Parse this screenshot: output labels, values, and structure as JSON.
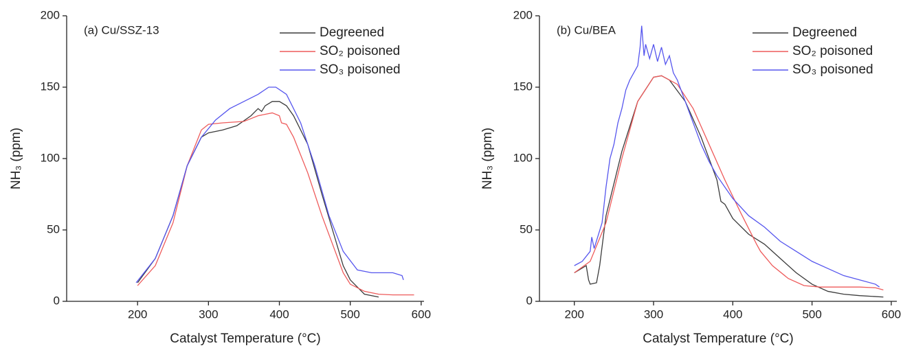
{
  "chart_data": [
    {
      "type": "line",
      "title": "(a) Cu/SSZ-13",
      "xlabel": "Catalyst Temperature (°C)",
      "ylabel": "NH₃ (ppm)",
      "xlim": [
        100,
        604
      ],
      "xticks": [
        200,
        300,
        400,
        500,
        600
      ],
      "ylim": [
        0,
        200
      ],
      "yticks": [
        0,
        50,
        100,
        150,
        200
      ],
      "legend": "upper right",
      "series": [
        {
          "name": "Degreened",
          "color": "#3a3a3a",
          "x": [
            200,
            225,
            250,
            270,
            290,
            300,
            320,
            340,
            360,
            370,
            375,
            380,
            390,
            400,
            410,
            420,
            440,
            460,
            475,
            490,
            500,
            520,
            540
          ],
          "values": [
            13,
            30,
            60,
            95,
            115,
            118,
            120,
            123,
            130,
            135,
            133,
            137,
            140,
            140,
            137,
            130,
            110,
            75,
            50,
            25,
            15,
            5,
            3
          ]
        },
        {
          "name": "SO₂ poisoned",
          "color": "#ee5a5a",
          "x": [
            200,
            225,
            250,
            270,
            290,
            300,
            320,
            350,
            370,
            390,
            400,
            403,
            410,
            420,
            440,
            460,
            475,
            490,
            500,
            520,
            540,
            560,
            590
          ],
          "values": [
            11,
            25,
            55,
            95,
            120,
            124,
            125,
            126,
            130,
            132,
            130,
            125,
            124,
            115,
            90,
            60,
            40,
            20,
            12,
            7,
            5,
            4.5,
            4.5
          ]
        },
        {
          "name": "SO₃ poisoned",
          "color": "#5555ee",
          "x": [
            198,
            225,
            250,
            270,
            290,
            310,
            330,
            350,
            370,
            385,
            395,
            410,
            430,
            450,
            470,
            490,
            510,
            530,
            560,
            573,
            575
          ],
          "values": [
            13,
            30,
            60,
            95,
            115,
            127,
            135,
            140,
            145,
            150,
            150,
            145,
            125,
            95,
            60,
            35,
            22,
            20,
            20,
            18,
            15
          ]
        }
      ]
    },
    {
      "type": "line",
      "title": "(b) Cu/BEA",
      "xlabel": "Catalyst Temperature (°C)",
      "ylabel": "NH₃ (ppm)",
      "xlim": [
        156,
        607
      ],
      "xticks": [
        200,
        300,
        400,
        500,
        600
      ],
      "ylim": [
        0,
        200
      ],
      "yticks": [
        0,
        50,
        100,
        150,
        200
      ],
      "legend": "upper right",
      "series": [
        {
          "name": "Degreened",
          "color": "#3a3a3a",
          "x": [
            200,
            215,
            218,
            220,
            228,
            232,
            240,
            260,
            280,
            300,
            310,
            320,
            340,
            360,
            380,
            385,
            390,
            400,
            420,
            440,
            460,
            480,
            500,
            520,
            540,
            560,
            590
          ],
          "values": [
            20,
            25,
            15,
            12,
            13,
            25,
            60,
            105,
            140,
            157,
            158,
            155,
            140,
            115,
            85,
            70,
            68,
            58,
            47,
            40,
            30,
            20,
            12,
            7,
            5,
            4,
            3
          ]
        },
        {
          "name": "SO₂ poisoned",
          "color": "#ee5a5a",
          "x": [
            200,
            220,
            240,
            260,
            280,
            300,
            310,
            330,
            350,
            370,
            390,
            410,
            430,
            435,
            450,
            470,
            490,
            510,
            530,
            560,
            580,
            590
          ],
          "values": [
            20,
            28,
            55,
            100,
            140,
            157,
            158,
            152,
            135,
            110,
            85,
            62,
            40,
            35,
            25,
            16,
            11,
            10,
            10,
            10,
            9.5,
            8
          ]
        },
        {
          "name": "SO₃ poisoned",
          "color": "#5555ee",
          "x": [
            200,
            210,
            220,
            222,
            225,
            235,
            240,
            245,
            250,
            255,
            260,
            265,
            270,
            275,
            280,
            283,
            285,
            288,
            290,
            295,
            300,
            305,
            310,
            315,
            320,
            325,
            330,
            340,
            350,
            360,
            370,
            380,
            390,
            400,
            420,
            440,
            460,
            480,
            500,
            520,
            540,
            560,
            580,
            585
          ],
          "values": [
            25,
            28,
            35,
            45,
            37,
            55,
            80,
            100,
            110,
            125,
            135,
            148,
            155,
            160,
            165,
            178,
            193,
            172,
            180,
            170,
            180,
            168,
            178,
            166,
            172,
            160,
            155,
            140,
            125,
            110,
            98,
            88,
            80,
            72,
            60,
            52,
            42,
            35,
            28,
            23,
            18,
            15,
            12,
            10
          ]
        }
      ]
    }
  ]
}
